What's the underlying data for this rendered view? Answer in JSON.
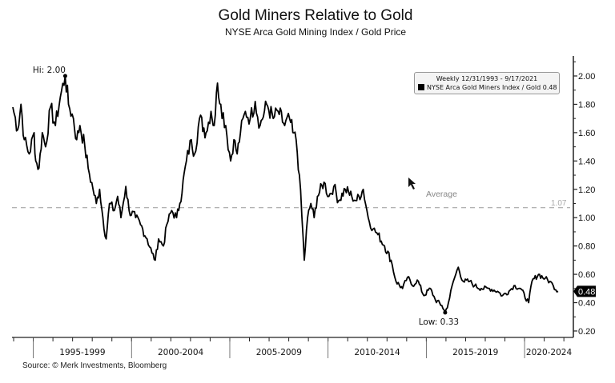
{
  "chart_data": {
    "type": "line",
    "title": "Gold Miners Relative to Gold",
    "subtitle": "NYSE Arca Gold Mining Index / Gold Price",
    "source": "Source: © Merk Investments, Bloomberg",
    "legend": {
      "header": "Weekly 12/31/1993 - 9/17/2021",
      "entry": "NYSE Arca Gold Miners Index / Gold",
      "last_value": "0.48",
      "placement": "top-right"
    },
    "series_color": "#000000",
    "average": {
      "label": "Average",
      "value": 1.07,
      "value_label": "1.07",
      "color": "#999999"
    },
    "annotations": [
      {
        "text": "Hi: 2.00",
        "date": "1996-08",
        "value": 2.0
      },
      {
        "text": "Low: 0.33",
        "date": "2015-12",
        "value": 0.33
      }
    ],
    "current_value_badge": "0.48",
    "x_axis": {
      "range": [
        "1993-12",
        "2021-09"
      ],
      "period_labels": [
        "1995-1999",
        "2000-2004",
        "2005-2009",
        "2010-2014",
        "2015-2019",
        "2020-2024"
      ]
    },
    "y_axis": {
      "position": "right",
      "range": [
        0.2,
        2.1
      ],
      "ticks": [
        "0.20",
        "0.40",
        "0.60",
        "0.80",
        "1.00",
        "1.20",
        "1.40",
        "1.60",
        "1.80",
        "2.00"
      ]
    },
    "grid": false,
    "points": [
      [
        "1993-12",
        1.78
      ],
      [
        "1994-03",
        1.62
      ],
      [
        "1994-05",
        1.8
      ],
      [
        "1994-07",
        1.55
      ],
      [
        "1994-10",
        1.45
      ],
      [
        "1995-01",
        1.6
      ],
      [
        "1995-02",
        1.4
      ],
      [
        "1995-04",
        1.35
      ],
      [
        "1995-06",
        1.6
      ],
      [
        "1995-08",
        1.5
      ],
      [
        "1995-11",
        1.78
      ],
      [
        "1996-02",
        1.65
      ],
      [
        "1996-05",
        1.85
      ],
      [
        "1996-08",
        2.0
      ],
      [
        "1996-10",
        1.8
      ],
      [
        "1997-01",
        1.7
      ],
      [
        "1997-03",
        1.55
      ],
      [
        "1997-05",
        1.65
      ],
      [
        "1997-08",
        1.5
      ],
      [
        "1997-10",
        1.35
      ],
      [
        "1998-01",
        1.2
      ],
      [
        "1998-03",
        1.1
      ],
      [
        "1998-05",
        1.2
      ],
      [
        "1998-07",
        1.0
      ],
      [
        "1998-09",
        0.85
      ],
      [
        "1998-11",
        1.1
      ],
      [
        "1999-02",
        1.05
      ],
      [
        "1999-04",
        1.15
      ],
      [
        "1999-06",
        1.0
      ],
      [
        "1999-09",
        1.22
      ],
      [
        "1999-11",
        1.05
      ],
      [
        "2000-03",
        1.0
      ],
      [
        "2000-06",
        0.95
      ],
      [
        "2000-10",
        0.85
      ],
      [
        "2001-01",
        0.75
      ],
      [
        "2001-03",
        0.7
      ],
      [
        "2001-05",
        0.85
      ],
      [
        "2001-08",
        0.8
      ],
      [
        "2001-10",
        0.95
      ],
      [
        "2002-01",
        1.05
      ],
      [
        "2002-04",
        1.0
      ],
      [
        "2002-06",
        1.1
      ],
      [
        "2002-10",
        1.4
      ],
      [
        "2003-01",
        1.55
      ],
      [
        "2003-03",
        1.45
      ],
      [
        "2003-06",
        1.7
      ],
      [
        "2003-10",
        1.6
      ],
      [
        "2004-01",
        1.75
      ],
      [
        "2004-03",
        1.65
      ],
      [
        "2004-05",
        1.95
      ],
      [
        "2004-07",
        1.8
      ],
      [
        "2004-10",
        1.65
      ],
      [
        "2005-01",
        1.4
      ],
      [
        "2005-03",
        1.55
      ],
      [
        "2005-05",
        1.45
      ],
      [
        "2005-07",
        1.6
      ],
      [
        "2005-10",
        1.75
      ],
      [
        "2006-01",
        1.7
      ],
      [
        "2006-04",
        1.82
      ],
      [
        "2006-07",
        1.65
      ],
      [
        "2006-11",
        1.8
      ],
      [
        "2007-03",
        1.7
      ],
      [
        "2007-06",
        1.75
      ],
      [
        "2007-10",
        1.65
      ],
      [
        "2008-01",
        1.7
      ],
      [
        "2008-03",
        1.6
      ],
      [
        "2008-05",
        1.55
      ],
      [
        "2008-07",
        1.3
      ],
      [
        "2008-10",
        0.7
      ],
      [
        "2008-12",
        1.0
      ],
      [
        "2009-02",
        1.1
      ],
      [
        "2009-04",
        1.0
      ],
      [
        "2009-06",
        1.15
      ],
      [
        "2009-10",
        1.25
      ],
      [
        "2010-01",
        1.15
      ],
      [
        "2010-04",
        1.22
      ],
      [
        "2010-07",
        1.12
      ],
      [
        "2010-11",
        1.2
      ],
      [
        "2011-03",
        1.15
      ],
      [
        "2011-06",
        1.12
      ],
      [
        "2011-10",
        1.2
      ],
      [
        "2012-01",
        1.0
      ],
      [
        "2012-04",
        0.92
      ],
      [
        "2012-07",
        0.88
      ],
      [
        "2012-11",
        0.8
      ],
      [
        "2013-03",
        0.7
      ],
      [
        "2013-06",
        0.55
      ],
      [
        "2013-10",
        0.5
      ],
      [
        "2014-01",
        0.58
      ],
      [
        "2014-04",
        0.52
      ],
      [
        "2014-07",
        0.56
      ],
      [
        "2014-11",
        0.45
      ],
      [
        "2015-03",
        0.5
      ],
      [
        "2015-06",
        0.42
      ],
      [
        "2015-10",
        0.38
      ],
      [
        "2015-12",
        0.33
      ],
      [
        "2016-02",
        0.4
      ],
      [
        "2016-05",
        0.55
      ],
      [
        "2016-08",
        0.65
      ],
      [
        "2016-11",
        0.55
      ],
      [
        "2017-03",
        0.55
      ],
      [
        "2017-06",
        0.52
      ],
      [
        "2017-10",
        0.5
      ],
      [
        "2018-03",
        0.5
      ],
      [
        "2018-08",
        0.48
      ],
      [
        "2018-11",
        0.45
      ],
      [
        "2019-03",
        0.48
      ],
      [
        "2019-06",
        0.52
      ],
      [
        "2019-10",
        0.5
      ],
      [
        "2020-03",
        0.4
      ],
      [
        "2020-05",
        0.55
      ],
      [
        "2020-09",
        0.6
      ],
      [
        "2021-01",
        0.57
      ],
      [
        "2021-04",
        0.55
      ],
      [
        "2021-06",
        0.52
      ],
      [
        "2021-09",
        0.48
      ]
    ]
  }
}
